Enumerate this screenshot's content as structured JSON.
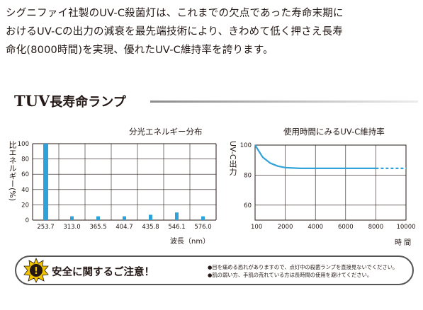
{
  "intro": {
    "lines": [
      "シグニファイ社製のUV-C殺菌灯は、これまでの欠点であった寿命末期に",
      "おけるUV-Cの出力の減衰を最先端技術により、きわめて低く押さえ長寿",
      "命化(8000時間)を実現、優れたUV-C維持率を誇ります。"
    ]
  },
  "section": {
    "title_latin": "TUV",
    "title_jp": "長寿命ランプ"
  },
  "charts": {
    "spectral": {
      "title": "分光エネルギー分布",
      "ylabel": "比エネルギー(%)",
      "xlabel": "波長（nm）"
    },
    "maintenance": {
      "title": "使用時間にみるUV-C維持率",
      "ylabel": "UV-C出力",
      "xlabel": "時 間"
    }
  },
  "chart_data": [
    {
      "type": "bar",
      "title": "分光エネルギー分布",
      "xlabel": "波長（nm）",
      "ylabel": "比エネルギー(%)",
      "categories": [
        "253.7",
        "313.0",
        "365.5",
        "404.7",
        "435.8",
        "546.1",
        "576.0"
      ],
      "values": [
        100,
        5,
        5,
        5,
        7,
        10,
        5
      ],
      "ylim": [
        0,
        100
      ],
      "yticks": [
        0,
        20,
        40,
        60,
        80,
        100
      ],
      "grid": true,
      "color": "#2fa3d9"
    },
    {
      "type": "line",
      "title": "使用時間にみるUV-C維持率",
      "xlabel": "時 間",
      "ylabel": "UV-C出力",
      "x": [
        0,
        250,
        500,
        1000,
        1500,
        2000,
        3000,
        4000,
        6000,
        8000
      ],
      "y": [
        100,
        96,
        92,
        88,
        86,
        85,
        84.5,
        84.5,
        84.5,
        84.5
      ],
      "dashed_extension": {
        "x": [
          8000,
          10000
        ],
        "y": [
          84.5,
          84.5
        ]
      },
      "xlim": [
        0,
        10000
      ],
      "ylim": [
        50,
        100
      ],
      "xticks": [
        100,
        2000,
        4000,
        6000,
        8000,
        10000
      ],
      "xticklabels": [
        "100",
        "2000",
        "4000",
        "6000",
        "8000",
        "10000"
      ],
      "yticks": [
        60,
        80,
        100
      ],
      "grid": true,
      "color": "#2fa3d9"
    }
  ],
  "caution": {
    "badge_symbol": "!",
    "heading": "安全に関するご注意！",
    "notes": [
      "●目を痛める恐れがありますので、点灯中の殺菌ランプを直接見ないでください。",
      "●肌の弱い方、手肌の荒れている方は長時間の使用を避けてください。"
    ]
  }
}
